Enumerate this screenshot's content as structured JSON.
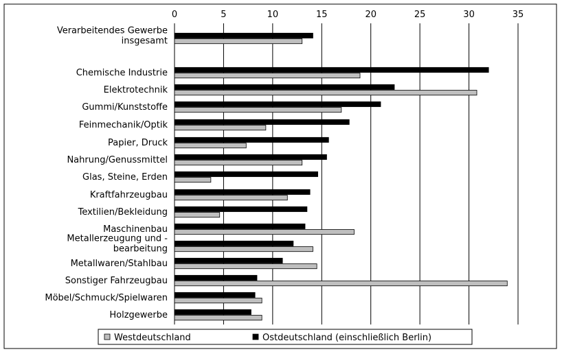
{
  "chart_data": {
    "type": "bar",
    "orientation": "horizontal",
    "categories": [
      [
        "Verarbeitendes Gewerbe",
        "insgesamt"
      ],
      [
        "Chemische Industrie"
      ],
      [
        "Elektrotechnik"
      ],
      [
        "Gummi/Kunststoffe"
      ],
      [
        "Feinmechanik/Optik"
      ],
      [
        "Papier, Druck"
      ],
      [
        "Nahrung/Genussmittel"
      ],
      [
        "Glas, Steine, Erden"
      ],
      [
        "Kraftfahrzeugbau"
      ],
      [
        "Textilien/Bekleidung"
      ],
      [
        "Maschinenbau"
      ],
      [
        "Metallerzeugung und -",
        "bearbeitung"
      ],
      [
        "Metallwaren/Stahlbau"
      ],
      [
        "Sonstiger Fahrzeugbau"
      ],
      [
        "Möbel/Schmuck/Spielwaren"
      ],
      [
        "Holzgewerbe"
      ]
    ],
    "series": [
      {
        "name": "Ostdeutschland (einschließlich Berlin)",
        "color": "#000000",
        "values": [
          14.1,
          32.0,
          22.4,
          21.0,
          17.8,
          15.7,
          15.5,
          14.6,
          13.8,
          13.5,
          13.3,
          12.1,
          11.0,
          8.4,
          8.2,
          7.8
        ]
      },
      {
        "name": "Westdeutschland",
        "color": "#bfbfbf",
        "values": [
          13.0,
          18.9,
          30.8,
          17.0,
          9.3,
          7.3,
          13.0,
          3.7,
          11.5,
          4.6,
          18.3,
          14.1,
          14.5,
          33.9,
          8.9,
          8.9
        ]
      }
    ],
    "xlim": [
      0,
      35
    ],
    "xticks": [
      "0",
      "5",
      "10",
      "15",
      "20",
      "25",
      "30",
      "35"
    ],
    "grid": true,
    "legend": {
      "position": "bottom",
      "order": [
        "Westdeutschland",
        "Ostdeutschland (einschließlich Berlin)"
      ]
    }
  }
}
